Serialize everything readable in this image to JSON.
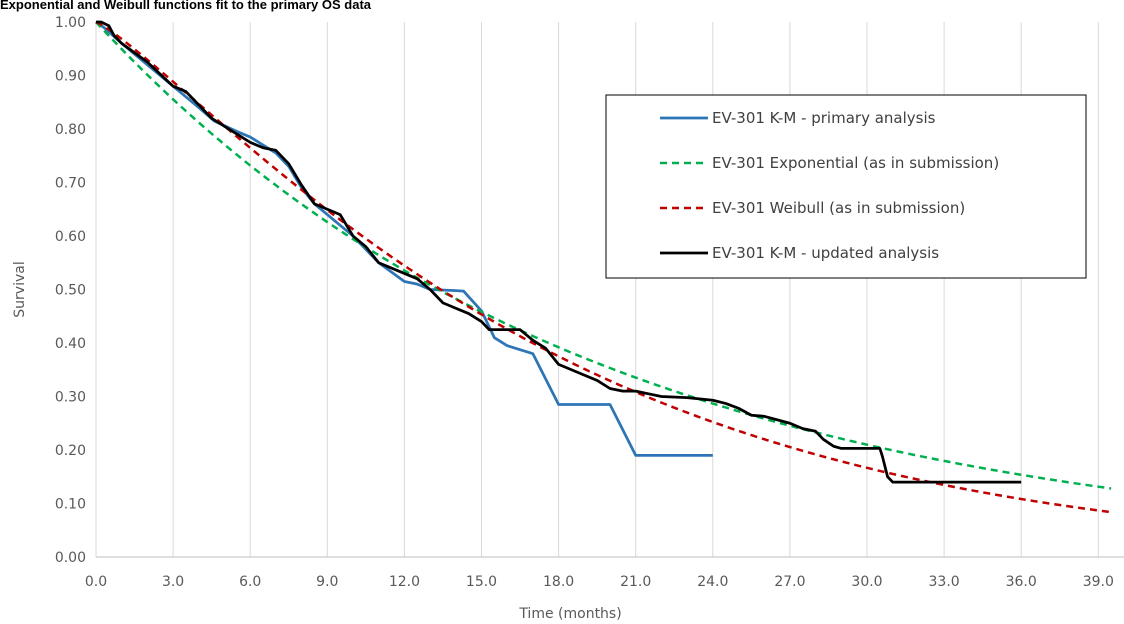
{
  "chart_data": {
    "type": "line",
    "title": "Exponential and Weibull functions fit to the primary OS data",
    "xlabel": "Time (months)",
    "ylabel": "Survival",
    "xlim": [
      0,
      39.5
    ],
    "ylim": [
      0,
      1
    ],
    "xticks": [
      0,
      3,
      6,
      9,
      12,
      15,
      18,
      21,
      24,
      27,
      30,
      33,
      36,
      39
    ],
    "xtick_labels": [
      "0.0",
      "3.0",
      "6.0",
      "9.0",
      "12.0",
      "15.0",
      "18.0",
      "21.0",
      "24.0",
      "27.0",
      "30.0",
      "33.0",
      "36.0",
      "39.0"
    ],
    "yticks": [
      0,
      0.1,
      0.2,
      0.3,
      0.4,
      0.5,
      0.6,
      0.7,
      0.8,
      0.9,
      1.0
    ],
    "ytick_labels": [
      "0.00",
      "0.10",
      "0.20",
      "0.30",
      "0.40",
      "0.50",
      "0.60",
      "0.70",
      "0.80",
      "0.90",
      "1.00"
    ],
    "grid": "vertical",
    "legend_position": "top-right",
    "series": [
      {
        "name": "EV-301 K-M - primary analysis",
        "color": "#2e75b6",
        "style": "solid",
        "step": false,
        "points": [
          [
            0,
            1.0
          ],
          [
            0.3,
            0.99
          ],
          [
            1.0,
            0.96
          ],
          [
            2.0,
            0.92
          ],
          [
            3.0,
            0.88
          ],
          [
            4.0,
            0.84
          ],
          [
            4.6,
            0.815
          ],
          [
            5.5,
            0.795
          ],
          [
            6.0,
            0.785
          ],
          [
            6.5,
            0.77
          ],
          [
            7.0,
            0.755
          ],
          [
            7.5,
            0.73
          ],
          [
            8.0,
            0.69
          ],
          [
            8.5,
            0.66
          ],
          [
            9.0,
            0.64
          ],
          [
            10.0,
            0.6
          ],
          [
            11.0,
            0.55
          ],
          [
            12.0,
            0.515
          ],
          [
            12.5,
            0.51
          ],
          [
            13.0,
            0.5
          ],
          [
            14.0,
            0.498
          ],
          [
            14.3,
            0.497
          ],
          [
            15.0,
            0.46
          ],
          [
            15.5,
            0.41
          ],
          [
            16.0,
            0.395
          ],
          [
            17.0,
            0.38
          ],
          [
            18.0,
            0.285
          ],
          [
            20.0,
            0.285
          ],
          [
            21.0,
            0.19
          ],
          [
            24.0,
            0.19
          ]
        ]
      },
      {
        "name": "EV-301 Exponential (as in submission)",
        "color": "#00b050",
        "style": "dashed",
        "step": false,
        "model": "exponential",
        "rate": 0.05203,
        "x_range": [
          0,
          39.5
        ]
      },
      {
        "name": "EV-301 Weibull (as in submission)",
        "color": "#c00000",
        "style": "dashed",
        "step": false,
        "model": "weibull",
        "scale": 18.3,
        "shape": 1.18,
        "x_range": [
          0,
          39.5
        ]
      },
      {
        "name": "EV-301 K-M - updated analysis",
        "color": "#000000",
        "style": "solid",
        "step": false,
        "points": [
          [
            0,
            1.0
          ],
          [
            0.2,
            1.0
          ],
          [
            0.5,
            0.993
          ],
          [
            0.7,
            0.975
          ],
          [
            1.0,
            0.96
          ],
          [
            2.0,
            0.925
          ],
          [
            3.0,
            0.88
          ],
          [
            3.5,
            0.87
          ],
          [
            4.0,
            0.845
          ],
          [
            4.5,
            0.82
          ],
          [
            5.0,
            0.805
          ],
          [
            6.0,
            0.775
          ],
          [
            6.5,
            0.765
          ],
          [
            7.0,
            0.76
          ],
          [
            7.5,
            0.735
          ],
          [
            8.0,
            0.695
          ],
          [
            8.5,
            0.66
          ],
          [
            9.0,
            0.65
          ],
          [
            9.5,
            0.64
          ],
          [
            10.0,
            0.6
          ],
          [
            10.5,
            0.58
          ],
          [
            11.0,
            0.55
          ],
          [
            12.0,
            0.53
          ],
          [
            12.5,
            0.52
          ],
          [
            13.0,
            0.5
          ],
          [
            13.5,
            0.475
          ],
          [
            14.0,
            0.465
          ],
          [
            14.5,
            0.455
          ],
          [
            15.0,
            0.44
          ],
          [
            15.3,
            0.425
          ],
          [
            16.5,
            0.425
          ],
          [
            17.0,
            0.405
          ],
          [
            17.5,
            0.39
          ],
          [
            18.0,
            0.36
          ],
          [
            19.0,
            0.34
          ],
          [
            19.5,
            0.33
          ],
          [
            20.0,
            0.315
          ],
          [
            20.5,
            0.31
          ],
          [
            21.0,
            0.31
          ],
          [
            21.5,
            0.305
          ],
          [
            22.0,
            0.3
          ],
          [
            23.0,
            0.298
          ],
          [
            24.0,
            0.293
          ],
          [
            24.5,
            0.287
          ],
          [
            25.0,
            0.278
          ],
          [
            25.5,
            0.265
          ],
          [
            26.0,
            0.263
          ],
          [
            27.0,
            0.25
          ],
          [
            27.5,
            0.24
          ],
          [
            28.0,
            0.235
          ],
          [
            28.3,
            0.22
          ],
          [
            28.7,
            0.207
          ],
          [
            29.0,
            0.203
          ],
          [
            30.5,
            0.203
          ],
          [
            30.6,
            0.188
          ],
          [
            30.8,
            0.15
          ],
          [
            31.0,
            0.14
          ],
          [
            36.0,
            0.14
          ]
        ]
      }
    ]
  }
}
